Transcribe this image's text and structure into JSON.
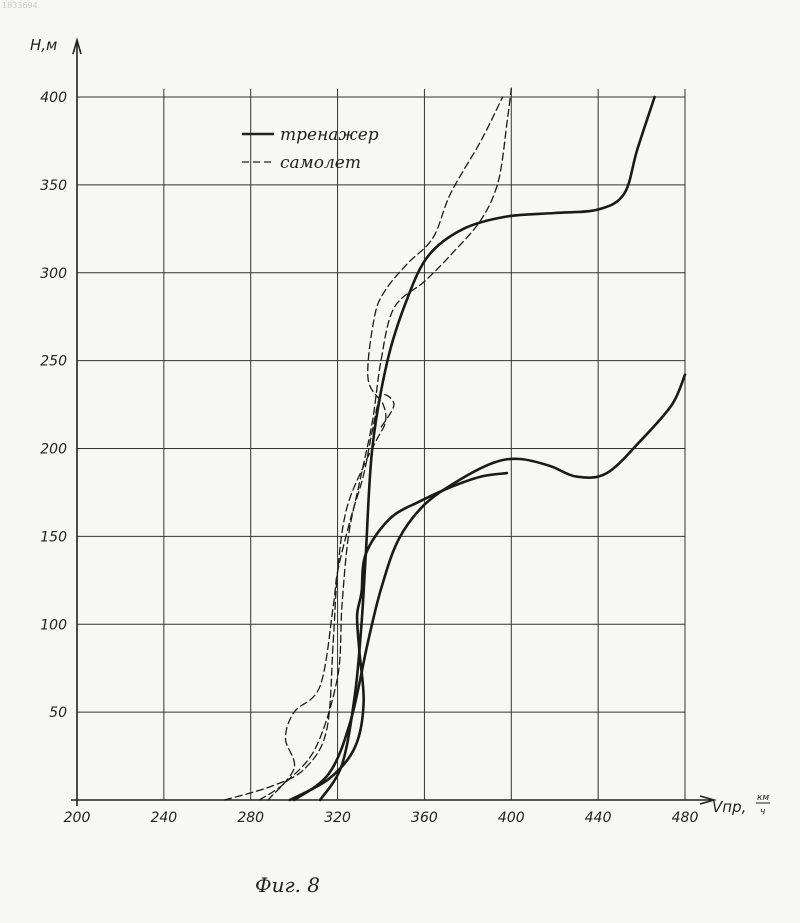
{
  "corner_text": "1833694",
  "caption": "Фиг. 8",
  "chart_data": {
    "type": "line",
    "xlabel": "Vпр,",
    "xunit_num": "км",
    "xunit_den": "ч",
    "ylabel": "Н,м",
    "xlim": [
      200,
      480
    ],
    "ylim": [
      0,
      400
    ],
    "x_ticks": [
      "200",
      "240",
      "280",
      "320",
      "360",
      "400",
      "440",
      "480"
    ],
    "y_ticks": [
      "50",
      "100",
      "150",
      "200",
      "250",
      "300",
      "350",
      "400"
    ],
    "grid": true,
    "legend_position": "top-center",
    "legend": [
      {
        "label": "тренажер",
        "style": "solid"
      },
      {
        "label": "самолет",
        "style": "dashed"
      }
    ],
    "series": [
      {
        "style": "solid",
        "points": [
          [
            312,
            0
          ],
          [
            322,
            20
          ],
          [
            328,
            60
          ],
          [
            331,
            100
          ],
          [
            333,
            140
          ],
          [
            336,
            200
          ],
          [
            343,
            250
          ],
          [
            352,
            285
          ],
          [
            362,
            310
          ],
          [
            378,
            325
          ],
          [
            398,
            332
          ],
          [
            420,
            334
          ],
          [
            440,
            336
          ],
          [
            452,
            345
          ],
          [
            458,
            370
          ],
          [
            466,
            400
          ]
        ]
      },
      {
        "style": "solid",
        "points": [
          [
            298,
            0
          ],
          [
            316,
            12
          ],
          [
            328,
            30
          ],
          [
            332,
            55
          ],
          [
            330,
            85
          ],
          [
            329,
            105
          ],
          [
            331,
            118
          ],
          [
            333,
            140
          ],
          [
            344,
            160
          ],
          [
            358,
            170
          ],
          [
            372,
            178
          ],
          [
            386,
            184
          ],
          [
            398,
            186
          ]
        ]
      },
      {
        "style": "solid",
        "points": [
          [
            300,
            0
          ],
          [
            316,
            15
          ],
          [
            326,
            45
          ],
          [
            334,
            90
          ],
          [
            340,
            120
          ],
          [
            348,
            148
          ],
          [
            360,
            168
          ],
          [
            376,
            182
          ],
          [
            392,
            192
          ],
          [
            404,
            194
          ],
          [
            418,
            190
          ],
          [
            430,
            184
          ],
          [
            444,
            186
          ],
          [
            460,
            205
          ],
          [
            474,
            225
          ],
          [
            480,
            242
          ]
        ]
      },
      {
        "style": "dashed",
        "points": [
          [
            268,
            0
          ],
          [
            290,
            8
          ],
          [
            305,
            18
          ],
          [
            315,
            40
          ],
          [
            318,
            90
          ],
          [
            320,
            130
          ],
          [
            324,
            165
          ],
          [
            332,
            190
          ],
          [
            338,
            205
          ],
          [
            342,
            215
          ],
          [
            341,
            225
          ],
          [
            334,
            240
          ],
          [
            337,
            275
          ],
          [
            342,
            290
          ],
          [
            352,
            305
          ],
          [
            364,
            320
          ],
          [
            372,
            345
          ],
          [
            386,
            375
          ],
          [
            396,
            400
          ]
        ]
      },
      {
        "style": "dashed",
        "points": [
          [
            284,
            0
          ],
          [
            296,
            10
          ],
          [
            310,
            30
          ],
          [
            320,
            70
          ],
          [
            322,
            110
          ],
          [
            325,
            150
          ],
          [
            330,
            180
          ],
          [
            336,
            215
          ],
          [
            340,
            250
          ],
          [
            346,
            280
          ],
          [
            360,
            295
          ],
          [
            372,
            310
          ],
          [
            386,
            330
          ],
          [
            394,
            352
          ],
          [
            398,
            385
          ],
          [
            400,
            405
          ]
        ]
      },
      {
        "style": "dashed",
        "points": [
          [
            288,
            0
          ],
          [
            300,
            18
          ],
          [
            296,
            35
          ],
          [
            300,
            50
          ],
          [
            312,
            65
          ],
          [
            318,
            110
          ],
          [
            320,
            130
          ],
          [
            326,
            160
          ],
          [
            332,
            185
          ],
          [
            336,
            210
          ],
          [
            340,
            230
          ],
          [
            346,
            225
          ],
          [
            340,
            212
          ]
        ]
      }
    ]
  }
}
